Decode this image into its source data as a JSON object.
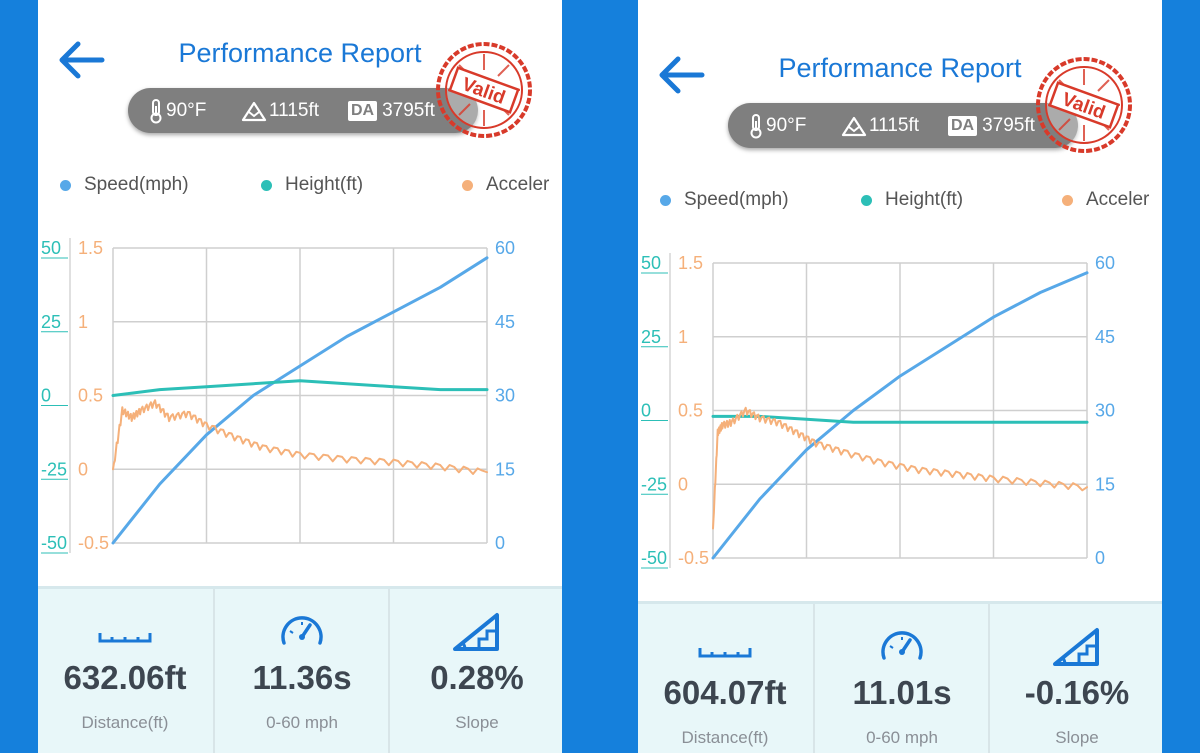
{
  "colors": {
    "speed": "#57a8e8",
    "height": "#2cbfb7",
    "accel": "#f5b07a",
    "title": "#1a78d6",
    "background": "#1580dc"
  },
  "left": {
    "title": "Performance Report",
    "env": {
      "temp": "90°F",
      "altitude": "1115ft",
      "da_label": "DA",
      "da_value": "3795ft"
    },
    "stamp_text": "Valid",
    "legend": {
      "speed": "Speed(mph)",
      "height": "Height(ft)",
      "accel": "Acceler"
    },
    "axis_left_height": [
      "50",
      "25",
      "0",
      "-25",
      "-50"
    ],
    "axis_left_accel": [
      "1.5",
      "1",
      "0.5",
      "0",
      "-0.5"
    ],
    "axis_right_speed": [
      "60",
      "45",
      "30",
      "15",
      "0"
    ],
    "stats": [
      {
        "icon": "ruler-icon",
        "value": "632.06ft",
        "label": "Distance(ft)"
      },
      {
        "icon": "speedometer-icon",
        "value": "11.36s",
        "label": "0-60 mph"
      },
      {
        "icon": "slope-icon",
        "value": "0.28%",
        "label": "Slope"
      }
    ]
  },
  "right": {
    "title": "Performance Report",
    "env": {
      "temp": "90°F",
      "altitude": "1115ft",
      "da_label": "DA",
      "da_value": "3795ft"
    },
    "stamp_text": "Valid",
    "legend": {
      "speed": "Speed(mph)",
      "height": "Height(ft)",
      "accel": "Acceler"
    },
    "axis_left_height": [
      "50",
      "25",
      "0",
      "-25",
      "-50"
    ],
    "axis_left_accel": [
      "1.5",
      "1",
      "0.5",
      "0",
      "-0.5"
    ],
    "axis_right_speed": [
      "60",
      "45",
      "30",
      "15",
      "0"
    ],
    "stats": [
      {
        "icon": "ruler-icon",
        "value": "604.07ft",
        "label": "Distance(ft)"
      },
      {
        "icon": "speedometer-icon",
        "value": "11.01s",
        "label": "0-60 mph"
      },
      {
        "icon": "slope-icon",
        "value": "-0.16%",
        "label": "Slope"
      }
    ]
  },
  "chart_data": [
    {
      "type": "line",
      "xlim": [
        0,
        4
      ],
      "y_speed_lim": [
        0,
        60
      ],
      "y_height_lim": [
        -50,
        50
      ],
      "y_accel_lim": [
        -0.5,
        1.5
      ],
      "series": [
        {
          "name": "Speed(mph)",
          "axis": "speed",
          "x": [
            0,
            0.5,
            1,
            1.5,
            2,
            2.5,
            3,
            3.5,
            4
          ],
          "values": [
            0,
            12,
            22,
            30,
            36,
            42,
            47,
            52,
            58
          ]
        },
        {
          "name": "Height(ft)",
          "axis": "height",
          "x": [
            0,
            0.5,
            1,
            1.5,
            2,
            2.5,
            3,
            3.5,
            4
          ],
          "values": [
            0,
            2,
            3,
            4,
            5,
            4,
            3,
            2,
            2
          ]
        },
        {
          "name": "Acceler",
          "axis": "accel",
          "x": [
            0,
            0.1,
            0.2,
            0.3,
            0.45,
            0.6,
            0.8,
            1,
            1.3,
            1.6,
            2,
            2.5,
            3,
            3.5,
            4
          ],
          "values": [
            0,
            0.4,
            0.35,
            0.4,
            0.45,
            0.35,
            0.38,
            0.3,
            0.22,
            0.15,
            0.1,
            0.07,
            0.05,
            0.02,
            -0.02
          ]
        }
      ]
    },
    {
      "type": "line",
      "xlim": [
        0,
        4
      ],
      "y_speed_lim": [
        0,
        60
      ],
      "y_height_lim": [
        -50,
        50
      ],
      "y_accel_lim": [
        -0.5,
        1.5
      ],
      "series": [
        {
          "name": "Speed(mph)",
          "axis": "speed",
          "x": [
            0,
            0.5,
            1,
            1.5,
            2,
            2.5,
            3,
            3.5,
            4
          ],
          "values": [
            0,
            12,
            22,
            30,
            37,
            43,
            49,
            54,
            58
          ]
        },
        {
          "name": "Height(ft)",
          "axis": "height",
          "x": [
            0,
            0.5,
            1,
            1.5,
            2,
            2.5,
            3,
            3.5,
            4
          ],
          "values": [
            -2,
            -2,
            -3,
            -4,
            -4,
            -4,
            -4,
            -4,
            -4
          ]
        },
        {
          "name": "Acceler",
          "axis": "accel",
          "x": [
            0,
            0.05,
            0.1,
            0.2,
            0.35,
            0.5,
            0.7,
            0.9,
            1.1,
            1.4,
            1.8,
            2.2,
            2.6,
            3,
            3.5,
            4
          ],
          "values": [
            -0.3,
            0.35,
            0.4,
            0.42,
            0.5,
            0.45,
            0.42,
            0.35,
            0.28,
            0.22,
            0.15,
            0.1,
            0.07,
            0.04,
            0.01,
            -0.02
          ]
        }
      ]
    }
  ]
}
